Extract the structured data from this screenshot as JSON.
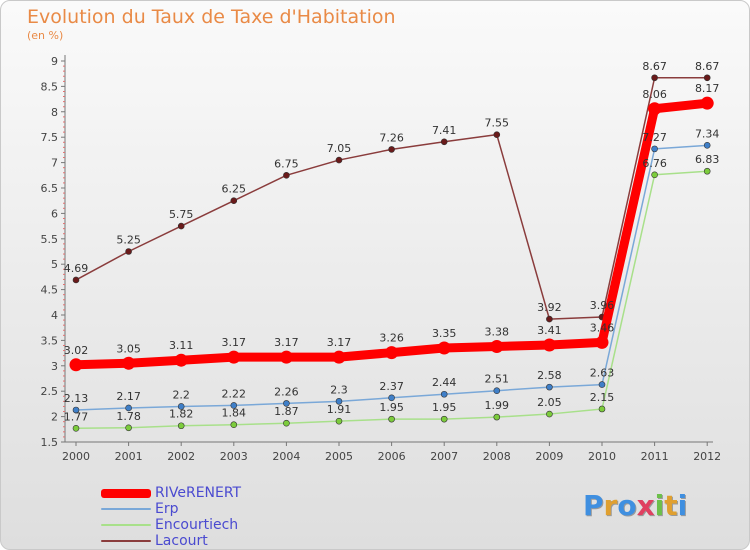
{
  "title": "Evolution du Taux de Taxe d'Habitation",
  "subtitle": "(en %)",
  "logo": {
    "text": "Proxiti",
    "letters": [
      {
        "ch": "P",
        "color": "#3f8fe0"
      },
      {
        "ch": "r",
        "color": "#e0a030"
      },
      {
        "ch": "o",
        "color": "#3f8fe0"
      },
      {
        "ch": "x",
        "color": "#e04060"
      },
      {
        "ch": "i",
        "color": "#6cc04a"
      },
      {
        "ch": "t",
        "color": "#e0a030"
      },
      {
        "ch": "i",
        "color": "#3f8fe0"
      }
    ]
  },
  "chart_data": {
    "type": "line",
    "title": "Evolution du Taux de Taxe d'Habitation",
    "subtitle": "(en %)",
    "xlabel": "",
    "ylabel": "",
    "ylim": [
      1.5,
      9
    ],
    "yticks": [
      "1.5",
      "2",
      "2.5",
      "3",
      "3.5",
      "4",
      "4.5",
      "5",
      "5.5",
      "6",
      "6.5",
      "7",
      "7.5",
      "8",
      "8.5",
      "9"
    ],
    "x": [
      "2000",
      "2001",
      "2002",
      "2003",
      "2004",
      "2005",
      "2006",
      "2007",
      "2008",
      "2009",
      "2010",
      "2011",
      "2012"
    ],
    "grid": false,
    "legend_position": "bottom-left",
    "series": [
      {
        "name": "RIVeRENERT",
        "color": "#ff0000",
        "marker_color": "#ff0000",
        "thick": true,
        "values": [
          3.02,
          3.05,
          3.11,
          3.17,
          3.17,
          3.17,
          3.26,
          3.35,
          3.38,
          3.41,
          3.46,
          8.06,
          8.17
        ],
        "labels": [
          "3.02",
          "3.05",
          "3.11",
          "3.17",
          "3.17",
          "3.17",
          "3.26",
          "3.35",
          "3.38",
          "3.41",
          "3.46",
          "8.06",
          "8.17"
        ]
      },
      {
        "name": "Erp",
        "color": "#7aa8d8",
        "marker_color": "#3f7fc8",
        "thick": false,
        "values": [
          2.13,
          2.17,
          2.2,
          2.22,
          2.26,
          2.3,
          2.37,
          2.44,
          2.51,
          2.58,
          2.63,
          7.27,
          7.34
        ],
        "labels": [
          "2.13",
          "2.17",
          "2.2",
          "2.22",
          "2.26",
          "2.3",
          "2.37",
          "2.44",
          "2.51",
          "2.58",
          "2.63",
          "7.27",
          "7.34"
        ]
      },
      {
        "name": "Encourtiech",
        "color": "#a8e08a",
        "marker_color": "#7ccc3c",
        "thick": false,
        "values": [
          1.77,
          1.78,
          1.82,
          1.84,
          1.87,
          1.91,
          1.95,
          1.95,
          1.99,
          2.05,
          2.15,
          6.76,
          6.83
        ],
        "labels": [
          "1.77",
          "1.78",
          "1.82",
          "1.84",
          "1.87",
          "1.91",
          "1.95",
          "1.95",
          "1.99",
          "2.05",
          "2.15",
          "6.76",
          "6.83"
        ]
      },
      {
        "name": "Lacourt",
        "color": "#8a3c3c",
        "marker_color": "#6a1a1a",
        "thick": false,
        "values": [
          4.69,
          5.25,
          5.75,
          6.25,
          6.75,
          7.05,
          7.26,
          7.41,
          7.55,
          3.92,
          3.96,
          8.67,
          8.67
        ],
        "labels": [
          "4.69",
          "5.25",
          "5.75",
          "6.25",
          "6.75",
          "7.05",
          "7.26",
          "7.41",
          "7.55",
          "3.92",
          "3.96",
          "8.67",
          "8.67"
        ]
      }
    ]
  }
}
